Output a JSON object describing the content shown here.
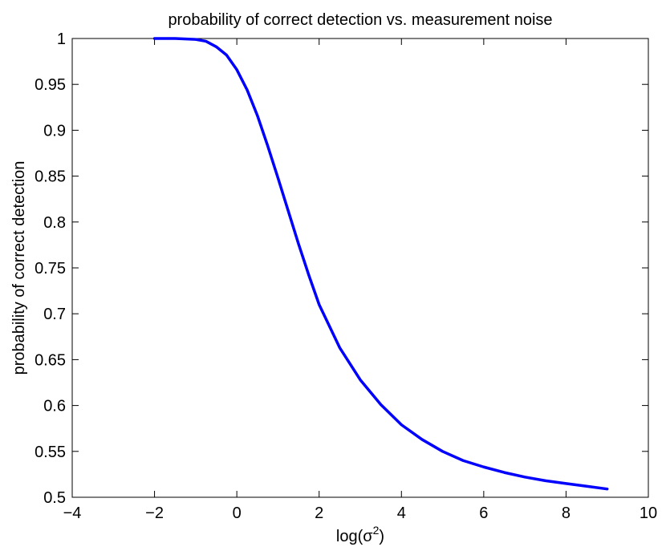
{
  "chart_data": {
    "type": "line",
    "title": "probability of correct detection vs. measurement noise",
    "xlabel_base": "log(σ",
    "xlabel_sup": "2",
    "xlabel_end": ")",
    "ylabel": "probability of correct detection",
    "xlim": [
      -4,
      10
    ],
    "ylim": [
      0.5,
      1
    ],
    "xticks": [
      -4,
      -2,
      0,
      2,
      4,
      6,
      8,
      10
    ],
    "yticks": [
      0.5,
      0.55,
      0.6,
      0.65,
      0.7,
      0.75,
      0.8,
      0.85,
      0.9,
      0.95,
      1
    ],
    "xtick_labels": [
      "−4",
      "−2",
      "0",
      "2",
      "4",
      "6",
      "8",
      "10"
    ],
    "ytick_labels": [
      "0.5",
      "0.55",
      "0.6",
      "0.65",
      "0.7",
      "0.75",
      "0.8",
      "0.85",
      "0.9",
      "0.95",
      "1"
    ],
    "grid": false,
    "series": [
      {
        "color": "#0000ff",
        "x": [
          -2.0,
          -1.5,
          -1.0,
          -0.75,
          -0.5,
          -0.25,
          0.0,
          0.25,
          0.5,
          0.75,
          1.0,
          1.25,
          1.5,
          1.75,
          2.0,
          2.5,
          3.0,
          3.5,
          4.0,
          4.5,
          5.0,
          5.5,
          6.0,
          6.5,
          7.0,
          7.5,
          8.0,
          8.5,
          9.0
        ],
        "y": [
          1.0,
          1.0,
          0.999,
          0.997,
          0.991,
          0.982,
          0.966,
          0.944,
          0.916,
          0.883,
          0.848,
          0.812,
          0.776,
          0.742,
          0.71,
          0.663,
          0.628,
          0.601,
          0.579,
          0.563,
          0.55,
          0.54,
          0.533,
          0.527,
          0.522,
          0.518,
          0.515,
          0.512,
          0.509
        ]
      }
    ]
  }
}
